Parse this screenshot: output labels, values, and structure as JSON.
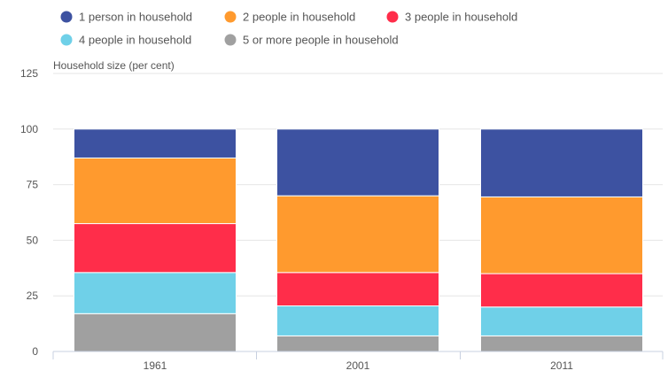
{
  "chart_data": {
    "type": "bar",
    "stacked": true,
    "ylabel": "Household size (per cent)",
    "ylim": [
      0,
      125
    ],
    "yticks": [
      0,
      25,
      50,
      75,
      100,
      125
    ],
    "grid": true,
    "legend_position": "top-left",
    "categories": [
      "1961",
      "2001",
      "2011"
    ],
    "series": [
      {
        "name": "5 or more people in household",
        "color": "#a0a0a0",
        "values": [
          17,
          7,
          7
        ]
      },
      {
        "name": "4 people in household",
        "color": "#6fd0e8",
        "values": [
          18.5,
          13.5,
          13
        ]
      },
      {
        "name": "3 people in household",
        "color": "#ff2d4a",
        "values": [
          22,
          15,
          15
        ]
      },
      {
        "name": "2 people in household",
        "color": "#ff9a2e",
        "values": [
          29.5,
          34.5,
          34.5
        ]
      },
      {
        "name": "1 person in household",
        "color": "#3d52a1",
        "values": [
          13,
          30,
          30.5
        ]
      }
    ],
    "legend_order": [
      4,
      3,
      2,
      1,
      0
    ]
  }
}
